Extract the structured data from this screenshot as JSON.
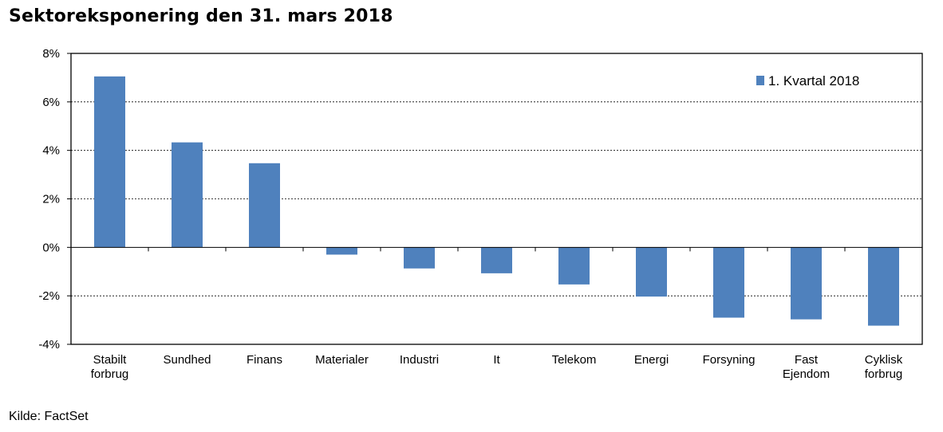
{
  "title": "Sektoreksponering den 31. mars 2018",
  "source": "Kilde: FactSet",
  "chart_data": {
    "type": "bar",
    "title": "Sektoreksponering den 31. mars 2018",
    "xlabel": "",
    "ylabel": "",
    "categories": [
      [
        "Stabilt",
        "forbrug"
      ],
      [
        "Sundhed"
      ],
      [
        "Finans"
      ],
      [
        "Materialer"
      ],
      [
        "Industri"
      ],
      [
        "It"
      ],
      [
        "Telekom"
      ],
      [
        "Energi"
      ],
      [
        "Forsyning"
      ],
      [
        "Fast",
        "Ejendom"
      ],
      [
        "Cyklisk",
        "forbrug"
      ]
    ],
    "series": [
      {
        "name": "1. Kvartal 2018",
        "color": "#4f81bd",
        "values": [
          7.05,
          4.33,
          3.47,
          -0.3,
          -0.87,
          -1.07,
          -1.53,
          -2.03,
          -2.9,
          -2.97,
          -3.23
        ]
      }
    ],
    "ylim": [
      -4,
      8
    ],
    "yticks": [
      8,
      6,
      4,
      2,
      0,
      -2,
      -4
    ],
    "ytick_labels": [
      "8%",
      "6%",
      "4%",
      "2%",
      "0%",
      "-2%",
      "-4%"
    ],
    "grid": "horizontal-dotted",
    "legend_position": "top-right"
  }
}
